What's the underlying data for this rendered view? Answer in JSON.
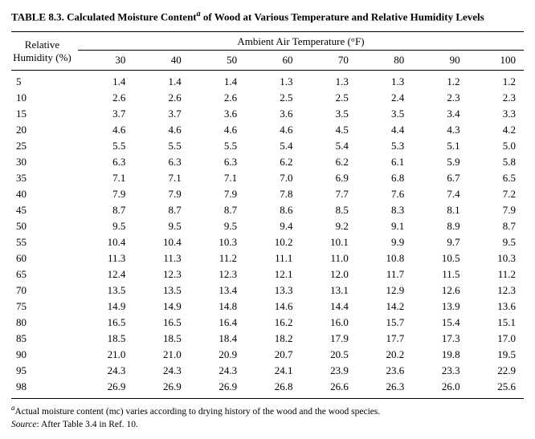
{
  "title_prefix": "TABLE 8.3.  Calculated Moisture Content",
  "title_sup": "a",
  "title_suffix": " of Wood at Various Temperature and Relative Humidity Levels",
  "rh_header_line1": "Relative",
  "rh_header_line2": "Humidity (%)",
  "temp_header": "Ambient Air Temperature (°F)",
  "temps": [
    "30",
    "40",
    "50",
    "60",
    "70",
    "80",
    "90",
    "100"
  ],
  "rows": [
    {
      "rh": "5",
      "v": [
        "1.4",
        "1.4",
        "1.4",
        "1.3",
        "1.3",
        "1.3",
        "1.2",
        "1.2"
      ]
    },
    {
      "rh": "10",
      "v": [
        "2.6",
        "2.6",
        "2.6",
        "2.5",
        "2.5",
        "2.4",
        "2.3",
        "2.3"
      ]
    },
    {
      "rh": "15",
      "v": [
        "3.7",
        "3.7",
        "3.6",
        "3.6",
        "3.5",
        "3.5",
        "3.4",
        "3.3"
      ]
    },
    {
      "rh": "20",
      "v": [
        "4.6",
        "4.6",
        "4.6",
        "4.6",
        "4.5",
        "4.4",
        "4.3",
        "4.2"
      ]
    },
    {
      "rh": "25",
      "v": [
        "5.5",
        "5.5",
        "5.5",
        "5.4",
        "5.4",
        "5.3",
        "5.1",
        "5.0"
      ]
    },
    {
      "rh": "30",
      "v": [
        "6.3",
        "6.3",
        "6.3",
        "6.2",
        "6.2",
        "6.1",
        "5.9",
        "5.8"
      ]
    },
    {
      "rh": "35",
      "v": [
        "7.1",
        "7.1",
        "7.1",
        "7.0",
        "6.9",
        "6.8",
        "6.7",
        "6.5"
      ]
    },
    {
      "rh": "40",
      "v": [
        "7.9",
        "7.9",
        "7.9",
        "7.8",
        "7.7",
        "7.6",
        "7.4",
        "7.2"
      ]
    },
    {
      "rh": "45",
      "v": [
        "8.7",
        "8.7",
        "8.7",
        "8.6",
        "8.5",
        "8.3",
        "8.1",
        "7.9"
      ]
    },
    {
      "rh": "50",
      "v": [
        "9.5",
        "9.5",
        "9.5",
        "9.4",
        "9.2",
        "9.1",
        "8.9",
        "8.7"
      ]
    },
    {
      "rh": "55",
      "v": [
        "10.4",
        "10.4",
        "10.3",
        "10.2",
        "10.1",
        "9.9",
        "9.7",
        "9.5"
      ]
    },
    {
      "rh": "60",
      "v": [
        "11.3",
        "11.3",
        "11.2",
        "11.1",
        "11.0",
        "10.8",
        "10.5",
        "10.3"
      ]
    },
    {
      "rh": "65",
      "v": [
        "12.4",
        "12.3",
        "12.3",
        "12.1",
        "12.0",
        "11.7",
        "11.5",
        "11.2"
      ]
    },
    {
      "rh": "70",
      "v": [
        "13.5",
        "13.5",
        "13.4",
        "13.3",
        "13.1",
        "12.9",
        "12.6",
        "12.3"
      ]
    },
    {
      "rh": "75",
      "v": [
        "14.9",
        "14.9",
        "14.8",
        "14.6",
        "14.4",
        "14.2",
        "13.9",
        "13.6"
      ]
    },
    {
      "rh": "80",
      "v": [
        "16.5",
        "16.5",
        "16.4",
        "16.2",
        "16.0",
        "15.7",
        "15.4",
        "15.1"
      ]
    },
    {
      "rh": "85",
      "v": [
        "18.5",
        "18.5",
        "18.4",
        "18.2",
        "17.9",
        "17.7",
        "17.3",
        "17.0"
      ]
    },
    {
      "rh": "90",
      "v": [
        "21.0",
        "21.0",
        "20.9",
        "20.7",
        "20.5",
        "20.2",
        "19.8",
        "19.5"
      ]
    },
    {
      "rh": "95",
      "v": [
        "24.3",
        "24.3",
        "24.3",
        "24.1",
        "23.9",
        "23.6",
        "23.3",
        "22.9"
      ]
    },
    {
      "rh": "98",
      "v": [
        "26.9",
        "26.9",
        "26.9",
        "26.8",
        "26.6",
        "26.3",
        "26.0",
        "25.6"
      ]
    }
  ],
  "footnote_sup": "a",
  "footnote_text": "Actual moisture content (mc) varies according to drying history of the wood and the wood species.",
  "source_label": "Source",
  "source_text": ": After Table 3.4 in Ref. 10.",
  "style": {
    "font_family": "Times New Roman",
    "title_fontsize_pt": 13,
    "body_fontsize_pt": 13,
    "footnote_fontsize_pt": 11.5,
    "rule_color": "#000000",
    "text_color": "#000000",
    "background_color": "#ffffff",
    "col_widths_pct": [
      13,
      10.875,
      10.875,
      10.875,
      10.875,
      10.875,
      10.875,
      10.875,
      10.875
    ]
  }
}
